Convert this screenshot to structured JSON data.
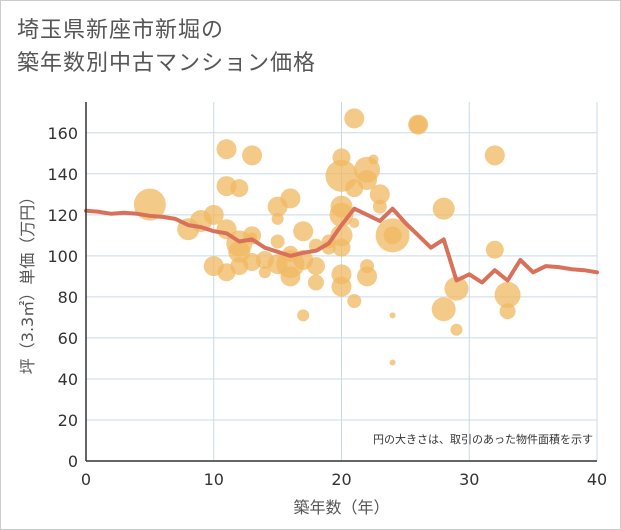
{
  "chart_data": {
    "type": "scatter",
    "title": "埼玉県新座市新堀の\n築年数別中古マンション価格",
    "xlabel": "築年数（年）",
    "ylabel": "坪（3.3㎡）単価（万円）",
    "note": "円の大きさは、取引のあった物件面積を示す",
    "xlim": [
      0,
      40
    ],
    "ylim": [
      0,
      175
    ],
    "x_ticks": [
      0,
      10,
      20,
      30,
      40
    ],
    "y_ticks": [
      0,
      20,
      40,
      60,
      80,
      100,
      120,
      140,
      160
    ],
    "grid": true,
    "colors": {
      "bubble": "#f0b862",
      "line": "#d9705a",
      "grid": "#c9d9e8",
      "axis": "#333333"
    },
    "scatter_points": [
      {
        "x": 5,
        "y": 125,
        "s": 1.6
      },
      {
        "x": 8,
        "y": 113,
        "s": 1.1
      },
      {
        "x": 9,
        "y": 117,
        "s": 1.1
      },
      {
        "x": 10,
        "y": 120,
        "s": 1.0
      },
      {
        "x": 10,
        "y": 95,
        "s": 1.0
      },
      {
        "x": 11,
        "y": 152,
        "s": 1.0
      },
      {
        "x": 11,
        "y": 134,
        "s": 1.0
      },
      {
        "x": 11,
        "y": 113,
        "s": 1.0
      },
      {
        "x": 11,
        "y": 92,
        "s": 0.9
      },
      {
        "x": 12,
        "y": 133,
        "s": 0.9
      },
      {
        "x": 12,
        "y": 106,
        "s": 1.3
      },
      {
        "x": 12,
        "y": 102,
        "s": 1.1
      },
      {
        "x": 12,
        "y": 95,
        "s": 0.9
      },
      {
        "x": 13,
        "y": 149,
        "s": 1.0
      },
      {
        "x": 13,
        "y": 110,
        "s": 0.9
      },
      {
        "x": 13,
        "y": 109,
        "s": 0.5
      },
      {
        "x": 13,
        "y": 97,
        "s": 0.9
      },
      {
        "x": 14,
        "y": 98,
        "s": 0.9
      },
      {
        "x": 14,
        "y": 92,
        "s": 0.6
      },
      {
        "x": 15,
        "y": 124,
        "s": 1.0
      },
      {
        "x": 15,
        "y": 118,
        "s": 0.6
      },
      {
        "x": 15,
        "y": 107,
        "s": 0.7
      },
      {
        "x": 15,
        "y": 96,
        "s": 1.0
      },
      {
        "x": 16,
        "y": 128,
        "s": 1.0
      },
      {
        "x": 16,
        "y": 96,
        "s": 1.4
      },
      {
        "x": 16,
        "y": 90,
        "s": 1.0
      },
      {
        "x": 16,
        "y": 101,
        "s": 0.8
      },
      {
        "x": 17,
        "y": 112,
        "s": 1.0
      },
      {
        "x": 17,
        "y": 98,
        "s": 1.0
      },
      {
        "x": 17,
        "y": 71,
        "s": 0.6
      },
      {
        "x": 18,
        "y": 105,
        "s": 0.7
      },
      {
        "x": 18,
        "y": 95,
        "s": 0.9
      },
      {
        "x": 18,
        "y": 87,
        "s": 0.8
      },
      {
        "x": 19,
        "y": 107,
        "s": 0.7
      },
      {
        "x": 19,
        "y": 104,
        "s": 0.7
      },
      {
        "x": 20,
        "y": 148,
        "s": 0.9
      },
      {
        "x": 20,
        "y": 139,
        "s": 1.6
      },
      {
        "x": 20,
        "y": 124,
        "s": 1.1
      },
      {
        "x": 20,
        "y": 120,
        "s": 1.2
      },
      {
        "x": 20,
        "y": 110,
        "s": 1.1
      },
      {
        "x": 20,
        "y": 104,
        "s": 0.9
      },
      {
        "x": 20,
        "y": 91,
        "s": 1.0
      },
      {
        "x": 20,
        "y": 85,
        "s": 1.0
      },
      {
        "x": 21,
        "y": 167,
        "s": 1.0
      },
      {
        "x": 21,
        "y": 133,
        "s": 0.9
      },
      {
        "x": 21,
        "y": 116,
        "s": 0.5
      },
      {
        "x": 21,
        "y": 78,
        "s": 0.7
      },
      {
        "x": 22,
        "y": 142,
        "s": 1.3
      },
      {
        "x": 22,
        "y": 137,
        "s": 1.0
      },
      {
        "x": 22,
        "y": 95,
        "s": 0.7
      },
      {
        "x": 22,
        "y": 90,
        "s": 1.0
      },
      {
        "x": 22.5,
        "y": 147,
        "s": 0.5
      },
      {
        "x": 23,
        "y": 130,
        "s": 1.0
      },
      {
        "x": 23,
        "y": 124,
        "s": 0.7
      },
      {
        "x": 24,
        "y": 110,
        "s": 1.7
      },
      {
        "x": 24,
        "y": 110,
        "s": 0.9
      },
      {
        "x": 24,
        "y": 71,
        "s": 0.3
      },
      {
        "x": 24,
        "y": 48,
        "s": 0.3
      },
      {
        "x": 26,
        "y": 164,
        "s": 1.0
      },
      {
        "x": 26,
        "y": 164,
        "s": 0.9
      },
      {
        "x": 28,
        "y": 123,
        "s": 1.1
      },
      {
        "x": 28,
        "y": 74,
        "s": 1.2
      },
      {
        "x": 29,
        "y": 84,
        "s": 1.2
      },
      {
        "x": 29,
        "y": 64,
        "s": 0.6
      },
      {
        "x": 32,
        "y": 149,
        "s": 1.0
      },
      {
        "x": 32,
        "y": 103,
        "s": 0.9
      },
      {
        "x": 33,
        "y": 81,
        "s": 1.3
      },
      {
        "x": 33,
        "y": 73,
        "s": 0.8
      }
    ],
    "series": [
      {
        "x": [
          0,
          1,
          2,
          3,
          4,
          5,
          6,
          7,
          8,
          9,
          10,
          11,
          12,
          13,
          14,
          15,
          16,
          17,
          18,
          19,
          20,
          21,
          22,
          23,
          24,
          25,
          26,
          27,
          28,
          29,
          30,
          31,
          32,
          33,
          34,
          35,
          36,
          37,
          38,
          39,
          40
        ],
        "values": [
          122,
          121.5,
          120.5,
          121,
          120.5,
          119.5,
          119,
          118,
          115,
          114,
          112,
          111,
          107,
          108,
          104,
          102,
          100,
          101.5,
          102.5,
          106,
          115,
          123,
          120,
          117,
          123,
          116,
          110,
          104,
          108,
          88,
          91,
          87,
          93,
          88,
          98,
          92,
          95,
          94.5,
          93.5,
          93,
          92
        ]
      }
    ]
  }
}
